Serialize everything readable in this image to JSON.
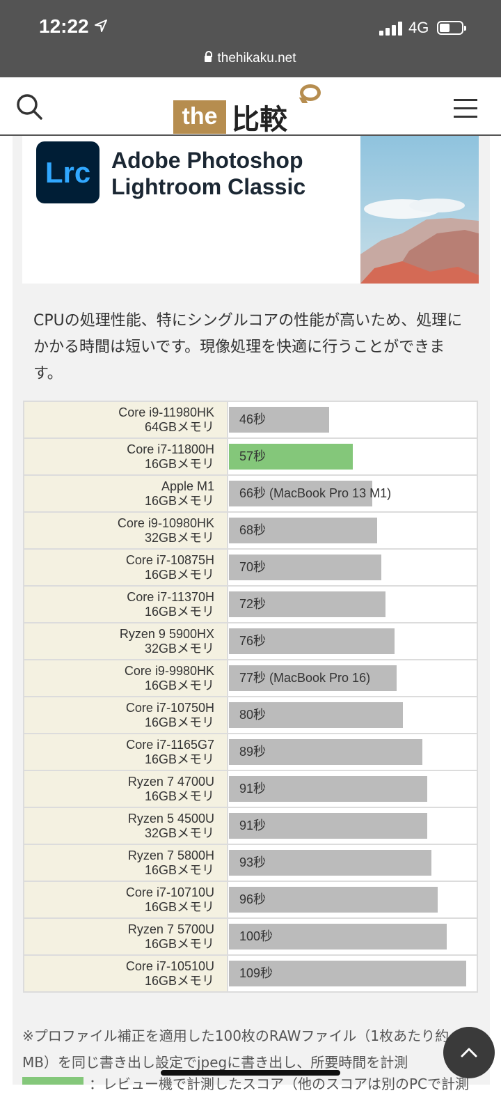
{
  "status_bar": {
    "time": "12:22",
    "network": "4G",
    "url": "thehikaku.net"
  },
  "header": {
    "logo_the": "the",
    "logo_hikaku": "比較",
    "icons": [
      "search-icon",
      "menu-icon"
    ]
  },
  "banner": {
    "app_icon": "Lrc",
    "title_line1": "Adobe Photoshop",
    "title_line2": "Lightroom Classic"
  },
  "description": "CPUの処理性能、特にシングルコアの性能が高いため、処理にかかる時間は短いです。現像処理を快適に行うことができます。",
  "chart_data": {
    "type": "bar",
    "orientation": "horizontal",
    "unit": "秒",
    "highlight_color": "#84c77a",
    "bar_color": "#bbbbbb",
    "rows": [
      {
        "cpu": "Core i9-11980HK",
        "memory": "64GBメモリ",
        "value": 46,
        "label": "46秒",
        "highlight": false
      },
      {
        "cpu": "Core i7-11800H",
        "memory": "16GBメモリ",
        "value": 57,
        "label": "57秒",
        "highlight": true
      },
      {
        "cpu": "Apple M1",
        "memory": "16GBメモリ",
        "value": 66,
        "label": "66秒 (MacBook Pro 13 M1)",
        "highlight": false
      },
      {
        "cpu": "Core i9-10980HK",
        "memory": "32GBメモリ",
        "value": 68,
        "label": "68秒",
        "highlight": false
      },
      {
        "cpu": "Core i7-10875H",
        "memory": "16GBメモリ",
        "value": 70,
        "label": "70秒",
        "highlight": false
      },
      {
        "cpu": "Core i7-11370H",
        "memory": "16GBメモリ",
        "value": 72,
        "label": "72秒",
        "highlight": false
      },
      {
        "cpu": "Ryzen 9 5900HX",
        "memory": "32GBメモリ",
        "value": 76,
        "label": "76秒",
        "highlight": false
      },
      {
        "cpu": "Core i9-9980HK",
        "memory": "16GBメモリ",
        "value": 77,
        "label": "77秒 (MacBook Pro 16)",
        "highlight": false
      },
      {
        "cpu": "Core i7-10750H",
        "memory": "16GBメモリ",
        "value": 80,
        "label": "80秒",
        "highlight": false
      },
      {
        "cpu": "Core i7-1165G7",
        "memory": "16GBメモリ",
        "value": 89,
        "label": "89秒",
        "highlight": false
      },
      {
        "cpu": "Ryzen 7 4700U",
        "memory": "16GBメモリ",
        "value": 91,
        "label": "91秒",
        "highlight": false
      },
      {
        "cpu": "Ryzen 5 4500U",
        "memory": "32GBメモリ",
        "value": 91,
        "label": "91秒",
        "highlight": false
      },
      {
        "cpu": "Ryzen 7 5800H",
        "memory": "16GBメモリ",
        "value": 93,
        "label": "93秒",
        "highlight": false
      },
      {
        "cpu": "Core i7-10710U",
        "memory": "16GBメモリ",
        "value": 96,
        "label": "96秒",
        "highlight": false
      },
      {
        "cpu": "Ryzen 7 5700U",
        "memory": "16GBメモリ",
        "value": 100,
        "label": "100秒",
        "highlight": false
      },
      {
        "cpu": "Core i7-10510U",
        "memory": "16GBメモリ",
        "value": 109,
        "label": "109秒",
        "highlight": false
      }
    ]
  },
  "note": "※プロファイル補正を適用した100枚のRAWファイル（1枚あたり約MB）を同じ書き出し設定でjpegに書き出し、所要時間を計測",
  "legend_text": "：レビュー機で計測したスコア（他のスコアは別のPCで計測"
}
